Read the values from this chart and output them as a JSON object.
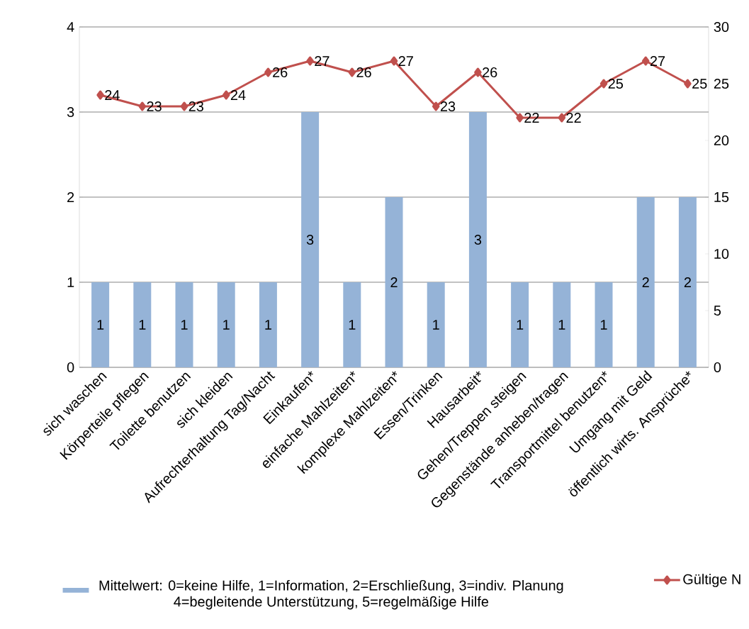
{
  "chart_data": {
    "type": "bar",
    "categories": [
      "sich waschen",
      "Körperteile pflegen",
      "Toilette benutzen",
      "sich kleiden",
      "Aufrechterhaltung Tag/Nacht",
      "Einkaufen*",
      "einfache Mahlzeiten*",
      "komplexe Mahlzeiten*",
      "Essen/Trinken",
      "Hausarbeit*",
      "Gehen/Treppen steigen",
      "Gegenstände anheben/tragen",
      "Transportmittel benutzen*",
      "Umgang mit Geld",
      "öffentlich wirts. Ansprüche*"
    ],
    "series": [
      {
        "name": "Mittelwert: 0=keine Hilfe, 1=Information, 2=Erschließung, 3=indiv. Planung 4=begleitende Unterstützung, 5=regelmäßige Hilfe",
        "color": "#95b3d7",
        "values": [
          1,
          1,
          1,
          1,
          1,
          3,
          1,
          2,
          1,
          3,
          1,
          1,
          1,
          2,
          2
        ]
      },
      {
        "name": "Gültige N",
        "type": "line",
        "axis": "y2",
        "color": "#c0504d",
        "marker": "diamond",
        "values": [
          24,
          23,
          23,
          24,
          26,
          27,
          26,
          27,
          23,
          26,
          22,
          22,
          25,
          27,
          25
        ]
      }
    ],
    "ylim": [
      0,
      4
    ],
    "yticks": [
      0,
      1,
      2,
      3,
      4
    ],
    "y2lim": [
      0,
      30
    ],
    "y2ticks": [
      0,
      5,
      10,
      15,
      20,
      25,
      30
    ],
    "grid": "y",
    "legend": "bottom",
    "data_labels": true
  }
}
